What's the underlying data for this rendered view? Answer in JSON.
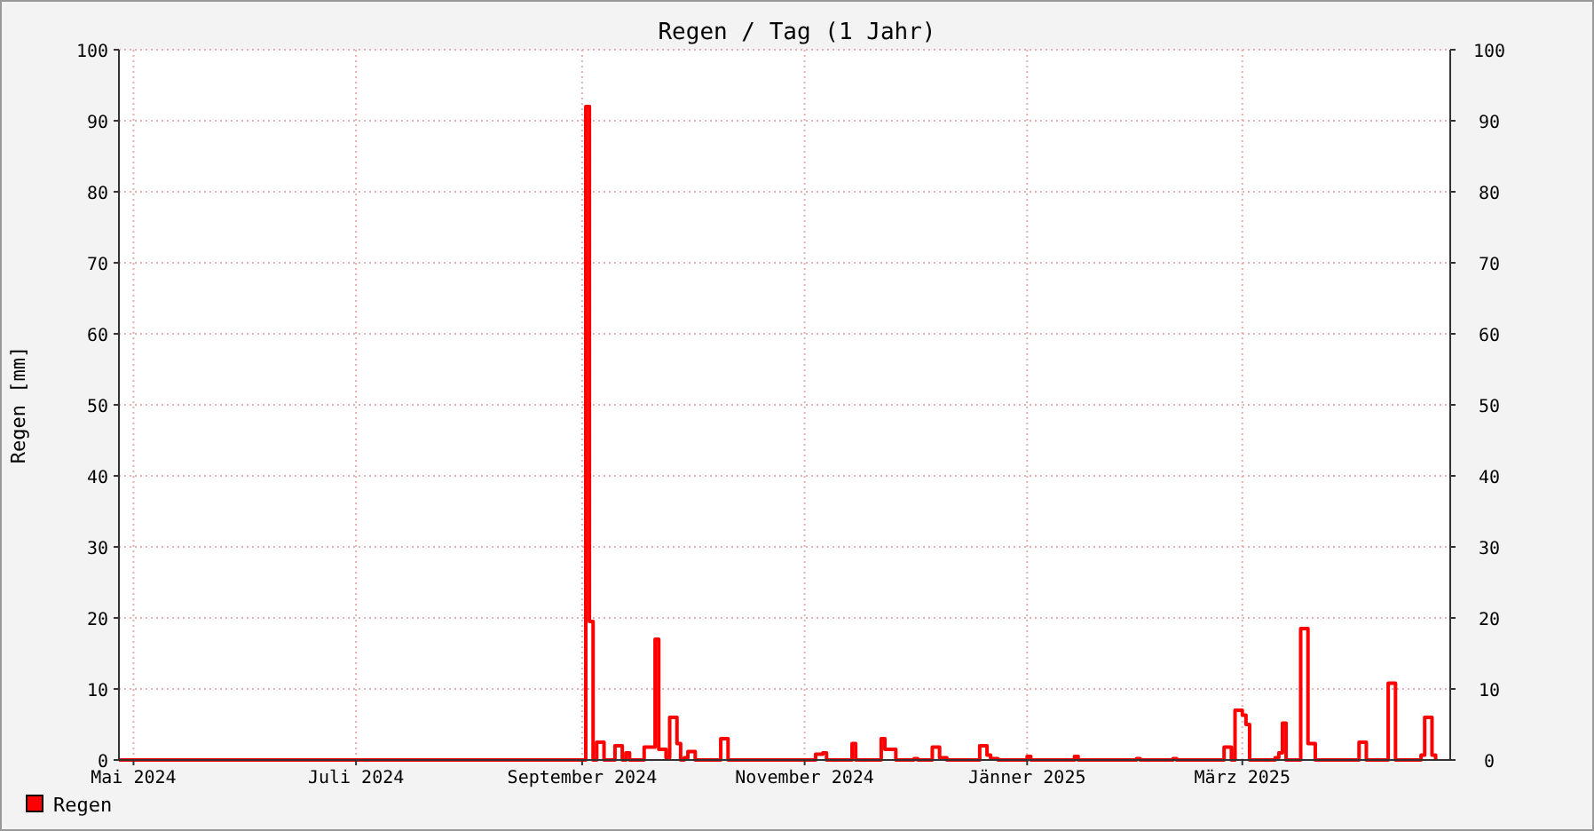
{
  "chart_data": {
    "type": "step",
    "title": "Regen / Tag (1 Jahr)",
    "ylabel": "Regen [mm]",
    "xlim": [
      "2024-04-27",
      "2025-04-27"
    ],
    "xticks": [
      {
        "value": "2024-05-01",
        "label": "Mai 2024"
      },
      {
        "value": "2024-07-01",
        "label": "Juli 2024"
      },
      {
        "value": "2024-09-01",
        "label": "September 2024"
      },
      {
        "value": "2024-11-01",
        "label": "November 2024"
      },
      {
        "value": "2025-01-01",
        "label": "Jänner 2025"
      },
      {
        "value": "2025-03-01",
        "label": "März 2025"
      }
    ],
    "ylim": [
      0,
      100
    ],
    "yticks": [
      0,
      10,
      20,
      30,
      40,
      50,
      60,
      70,
      80,
      90,
      100
    ],
    "y2lim": [
      0,
      100
    ],
    "y2ticks": [
      0,
      10,
      20,
      30,
      40,
      50,
      60,
      70,
      80,
      90,
      100
    ],
    "grid": true,
    "legend": "bottom left",
    "series": [
      {
        "name": "Regen",
        "color": "#ff0000",
        "x": [
          "2024-04-27",
          "2024-09-02",
          "2024-09-03",
          "2024-09-04",
          "2024-09-05",
          "2024-09-07",
          "2024-09-10",
          "2024-09-12",
          "2024-09-13",
          "2024-09-14",
          "2024-09-18",
          "2024-09-21",
          "2024-09-22",
          "2024-09-24",
          "2024-09-25",
          "2024-09-27",
          "2024-09-28",
          "2024-09-29",
          "2024-09-30",
          "2024-10-02",
          "2024-10-09",
          "2024-10-11",
          "2024-11-04",
          "2024-11-06",
          "2024-11-07",
          "2024-11-14",
          "2024-11-15",
          "2024-11-22",
          "2024-11-23",
          "2024-11-26",
          "2024-12-01",
          "2024-12-02",
          "2024-12-06",
          "2024-12-08",
          "2024-12-10",
          "2024-12-19",
          "2024-12-21",
          "2024-12-22",
          "2024-12-24",
          "2025-01-01",
          "2025-01-02",
          "2025-01-14",
          "2025-01-15",
          "2025-01-31",
          "2025-02-01",
          "2025-02-10",
          "2025-02-11",
          "2025-02-24",
          "2025-02-26",
          "2025-02-27",
          "2025-03-01",
          "2025-03-02",
          "2025-03-03",
          "2025-03-10",
          "2025-03-11",
          "2025-03-12",
          "2025-03-13",
          "2025-03-17",
          "2025-03-19",
          "2025-03-21",
          "2025-04-02",
          "2025-04-04",
          "2025-04-10",
          "2025-04-12",
          "2025-04-19",
          "2025-04-20",
          "2025-04-22",
          "2025-04-23"
        ],
        "values": [
          0,
          92,
          19.5,
          0,
          2.5,
          0,
          2,
          0,
          1,
          0,
          1.8,
          17,
          1.5,
          0.3,
          6,
          2.3,
          0,
          0.3,
          1.2,
          0,
          3,
          0,
          0.8,
          1,
          0,
          2.3,
          0,
          3,
          1.5,
          0,
          0.2,
          0,
          1.8,
          0.3,
          0,
          2,
          0.7,
          0.2,
          0,
          0.5,
          0,
          0.5,
          0,
          0.2,
          0,
          0.2,
          0,
          1.8,
          0,
          7,
          6.3,
          5,
          0,
          0.3,
          1,
          5.2,
          0,
          18.5,
          2.3,
          0,
          2.5,
          0,
          10.8,
          0,
          0.7,
          6,
          0.7,
          0
        ]
      }
    ]
  }
}
